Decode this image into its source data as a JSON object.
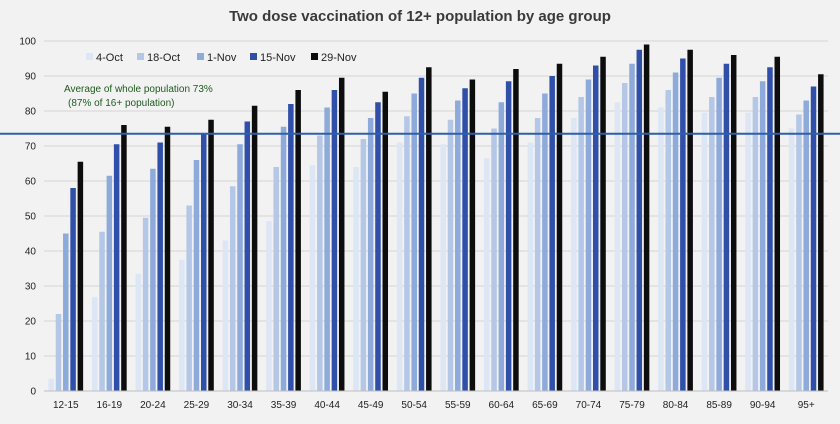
{
  "chart_data": {
    "type": "bar",
    "title": "Two dose vaccination of 12+ population by age group",
    "xlabel": "",
    "ylabel": "",
    "ylim": [
      0,
      100
    ],
    "yticks": [
      0,
      10,
      20,
      30,
      40,
      50,
      60,
      70,
      80,
      90,
      100
    ],
    "grid": true,
    "legend_position": "top-left",
    "categories": [
      "12-15",
      "16-19",
      "20-24",
      "25-29",
      "30-34",
      "35-39",
      "40-44",
      "45-49",
      "50-54",
      "55-59",
      "60-64",
      "65-69",
      "70-74",
      "75-79",
      "80-84",
      "85-89",
      "90-94",
      "95+"
    ],
    "series": [
      {
        "name": "4-Oct",
        "color": "#dce6f5",
        "values": [
          3.5,
          26.8,
          33.5,
          37.5,
          43,
          48.5,
          64.5,
          64,
          71,
          70.5,
          66.5,
          71,
          78,
          82.5,
          81,
          79.5,
          79.5,
          75
        ]
      },
      {
        "name": "18-Oct",
        "color": "#b4c7e7",
        "values": [
          22,
          45.5,
          49.5,
          53,
          58.5,
          64,
          73,
          72,
          78.5,
          77.5,
          75,
          78,
          84,
          88,
          86,
          84,
          84,
          79
        ]
      },
      {
        "name": "1-Nov",
        "color": "#8eaadb",
        "values": [
          45,
          61.5,
          63.5,
          66,
          70.5,
          75.5,
          81,
          78,
          85,
          83,
          82.5,
          85,
          89,
          93.5,
          91,
          89.5,
          88.5,
          83
        ]
      },
      {
        "name": "15-Nov",
        "color": "#2f4fa8",
        "values": [
          58,
          70.5,
          71,
          73.5,
          77,
          82,
          86,
          82.5,
          89.5,
          86.5,
          88.5,
          90,
          93,
          97.5,
          95,
          93.5,
          92.5,
          87
        ]
      },
      {
        "name": "29-Nov",
        "color": "#0d0d0d",
        "values": [
          65.5,
          76,
          75.5,
          77.5,
          81.5,
          86,
          89.5,
          85.5,
          92.5,
          89,
          92,
          93.5,
          95.5,
          99,
          97.5,
          96,
          95.5,
          90.5
        ]
      }
    ],
    "reference_line": {
      "value": 73.5,
      "color": "#2e5fa8"
    },
    "annotation": {
      "line1": "Average of whole population 73%",
      "line2": "(87% of 16+ population)"
    }
  }
}
